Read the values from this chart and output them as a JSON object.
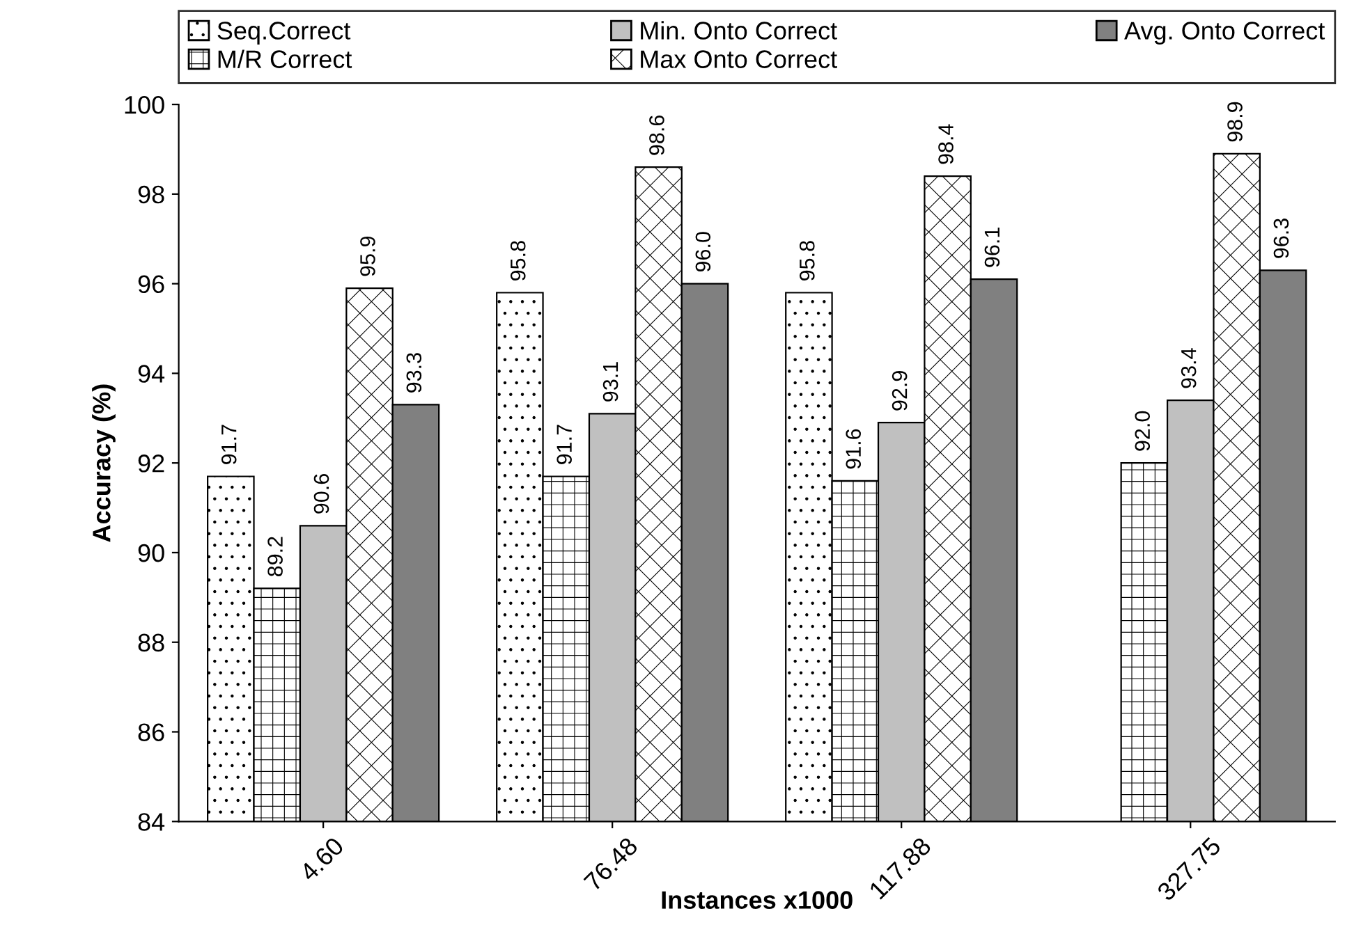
{
  "chart_data": {
    "type": "bar",
    "xlabel": "Instances x1000",
    "ylabel": "Accuracy (%)",
    "categories": [
      "4.60",
      "76.48",
      "117.88",
      "327.75"
    ],
    "series": [
      {
        "name": "Seq.Correct",
        "color": "#000000",
        "values": [
          91.7,
          95.8,
          95.8,
          null
        ],
        "value_labels": [
          "91.7",
          "95.8",
          "95.8",
          null
        ]
      },
      {
        "name": "M/R Correct",
        "color": "#000000",
        "values": [
          89.2,
          91.7,
          91.6,
          92.0
        ],
        "value_labels": [
          "89.2",
          "91.7",
          "91.6",
          "92.0"
        ]
      },
      {
        "name": "Min. Onto Correct",
        "color": "#c0c0c0",
        "values": [
          90.6,
          93.1,
          92.9,
          93.4
        ],
        "value_labels": [
          "90.6",
          "93.1",
          "92.9",
          "93.4"
        ]
      },
      {
        "name": "Max Onto Correct",
        "color": "#000000",
        "values": [
          95.9,
          98.6,
          98.4,
          98.9
        ],
        "value_labels": [
          "95.9",
          "98.6",
          "98.4",
          "98.9"
        ]
      },
      {
        "name": "Avg. Onto Correct",
        "color": "#808080",
        "values": [
          93.3,
          96.0,
          96.1,
          96.3
        ],
        "value_labels": [
          "93.3",
          "96.0",
          "96.1",
          "96.3"
        ]
      }
    ],
    "ylim": [
      84,
      100
    ],
    "yticks": [
      84,
      86,
      88,
      90,
      92,
      94,
      96,
      98,
      100
    ],
    "grid": false,
    "legend": "top"
  }
}
